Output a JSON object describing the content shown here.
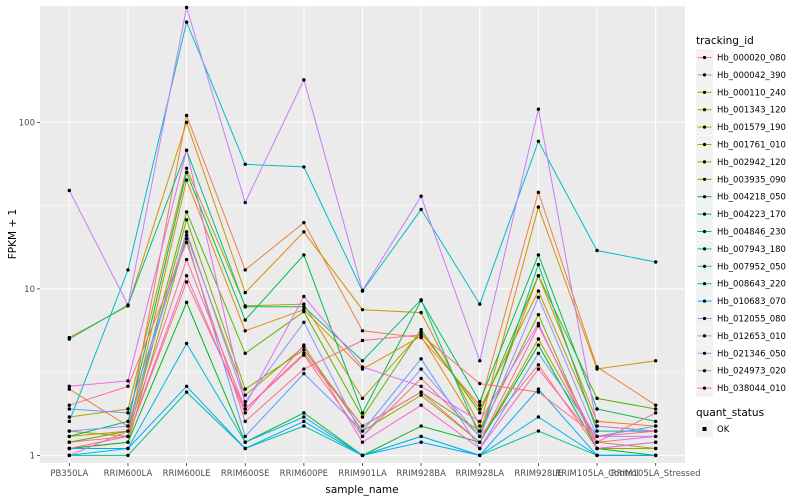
{
  "chart_data": {
    "type": "line",
    "xlabel": "sample_name",
    "ylabel": "FPKM + 1",
    "y_scale": "log10",
    "ylim": [
      0.9,
      500
    ],
    "y_ticks": [
      1,
      10,
      100
    ],
    "grid": true,
    "legend_placement": "right",
    "categories": [
      "PB350LA",
      "RRIM600LA",
      "RRIM600LE",
      "RRIM600SE",
      "RRIM600PE",
      "RRIM901LA",
      "RRIM928BA",
      "RRIM928LA",
      "RRIM928LE",
      "RRIM105LA_Control",
      "RRIM105LA_Stressed"
    ],
    "legend_color_title": "tracking_id",
    "legend_shape_title": "quant_status",
    "legend_shape_items": [
      "OK"
    ],
    "series": [
      {
        "name": "Hb_000020_080",
        "color": "#F8766D",
        "values": [
          1.2,
          1.3,
          11,
          1.9,
          4.0,
          1.3,
          2.9,
          1.3,
          3.5,
          1.1,
          1.2
        ]
      },
      {
        "name": "Hb_000042_390",
        "color": "#EE8044",
        "values": [
          2.5,
          1.5,
          110,
          13,
          25,
          5.6,
          5.1,
          2.0,
          38,
          3.4,
          2.0
        ]
      },
      {
        "name": "Hb_000110_240",
        "color": "#E18A00",
        "values": [
          1.3,
          1.4,
          45,
          5.6,
          7.5,
          3.3,
          5.2,
          1.4,
          12,
          1.6,
          1.5
        ]
      },
      {
        "name": "Hb_001343_120",
        "color": "#D09400",
        "values": [
          5.1,
          7.9,
          100,
          9.5,
          22,
          7.5,
          7.2,
          1.5,
          31,
          3.3,
          3.7
        ]
      },
      {
        "name": "Hb_001579_190",
        "color": "#BB9D00",
        "values": [
          1.7,
          1.9,
          53,
          7.9,
          8.1,
          2.2,
          5.5,
          1.9,
          9.7,
          1.5,
          1.4
        ]
      },
      {
        "name": "Hb_001761_010",
        "color": "#A3A500",
        "values": [
          1.1,
          1.2,
          21,
          2.3,
          4.5,
          1.4,
          2.3,
          1.2,
          5.0,
          1.2,
          1.1
        ]
      },
      {
        "name": "Hb_002942_120",
        "color": "#85AD00",
        "values": [
          1.4,
          1.3,
          26,
          2.5,
          4.3,
          1.5,
          2.4,
          1.4,
          7.0,
          1.1,
          1.1
        ]
      },
      {
        "name": "Hb_003935_090",
        "color": "#5BB300",
        "values": [
          1.2,
          1.4,
          29,
          4.1,
          7.3,
          1.7,
          5.7,
          1.8,
          12,
          2.2,
          1.9
        ]
      },
      {
        "name": "Hb_004218_050",
        "color": "#00B81F",
        "values": [
          1.1,
          1.2,
          8.3,
          1.2,
          1.8,
          1.0,
          1.5,
          1.2,
          4.6,
          1.1,
          1.0
        ]
      },
      {
        "name": "Hb_004223_170",
        "color": "#00BC56",
        "values": [
          1.3,
          1.6,
          50,
          6.5,
          16,
          1.8,
          8.5,
          2.1,
          16,
          1.9,
          1.6
        ]
      },
      {
        "name": "Hb_004846_230",
        "color": "#00BF7D",
        "values": [
          5.0,
          8.0,
          68,
          7.8,
          7.8,
          3.7,
          8.6,
          1.3,
          14,
          1.4,
          1.4
        ]
      },
      {
        "name": "Hb_007943_180",
        "color": "#00C19F",
        "values": [
          1.0,
          1.0,
          2.4,
          1.1,
          1.5,
          1.0,
          1.3,
          1.0,
          1.4,
          1.0,
          1.0
        ]
      },
      {
        "name": "Hb_007952_050",
        "color": "#00BFC4",
        "values": [
          1.6,
          13,
          400,
          56,
          54,
          9.7,
          30,
          8.1,
          77,
          17,
          14.5
        ]
      },
      {
        "name": "Hb_008643_220",
        "color": "#00B8E7",
        "values": [
          1.0,
          1.1,
          4.7,
          1.2,
          1.7,
          1.0,
          1.3,
          1.0,
          1.7,
          1.0,
          1.0
        ]
      },
      {
        "name": "Hb_010683_070",
        "color": "#00A9FF",
        "values": [
          1.1,
          1.1,
          2.6,
          1.1,
          1.6,
          1.0,
          1.2,
          1.0,
          2.5,
          1.0,
          1.0
        ]
      },
      {
        "name": "Hb_012055_080",
        "color": "#619CFF",
        "values": [
          1.9,
          1.8,
          20,
          1.3,
          3.1,
          1.4,
          3.8,
          1.1,
          4.1,
          1.3,
          1.5
        ]
      },
      {
        "name": "Hb_012653_010",
        "color": "#9590FF",
        "values": [
          1.4,
          1.5,
          22,
          2.1,
          6.3,
          1.3,
          3.3,
          1.3,
          8.9,
          1.3,
          1.3
        ]
      },
      {
        "name": "Hb_021346_050",
        "color": "#C77CFF",
        "values": [
          39,
          8.0,
          490,
          33,
          180,
          9.8,
          36,
          3.7,
          120,
          1.5,
          1.4
        ]
      },
      {
        "name": "Hb_024973_020",
        "color": "#E76BF3",
        "values": [
          2.6,
          2.8,
          68,
          2.0,
          9.0,
          3.4,
          2.6,
          1.6,
          6.2,
          1.1,
          1.2
        ]
      },
      {
        "name": "Hb_038044_010",
        "color": "#FF61C3",
        "values": [
          1.1,
          1.3,
          12,
          1.8,
          4.6,
          1.2,
          2.0,
          1.1,
          3.3,
          1.2,
          1.3
        ]
      },
      {
        "name": "",
        "color": "#FF67A4",
        "values": [
          1.0,
          1.4,
          15,
          1.9,
          4.1,
          1.5,
          2.4,
          1.2,
          6.0,
          1.2,
          1.8
        ]
      },
      {
        "name": "",
        "color": "#FC717F",
        "values": [
          2.0,
          2.6,
          19,
          1.6,
          3.3,
          4.9,
          5.3,
          2.7,
          2.4,
          1.3,
          1.4
        ]
      }
    ]
  }
}
